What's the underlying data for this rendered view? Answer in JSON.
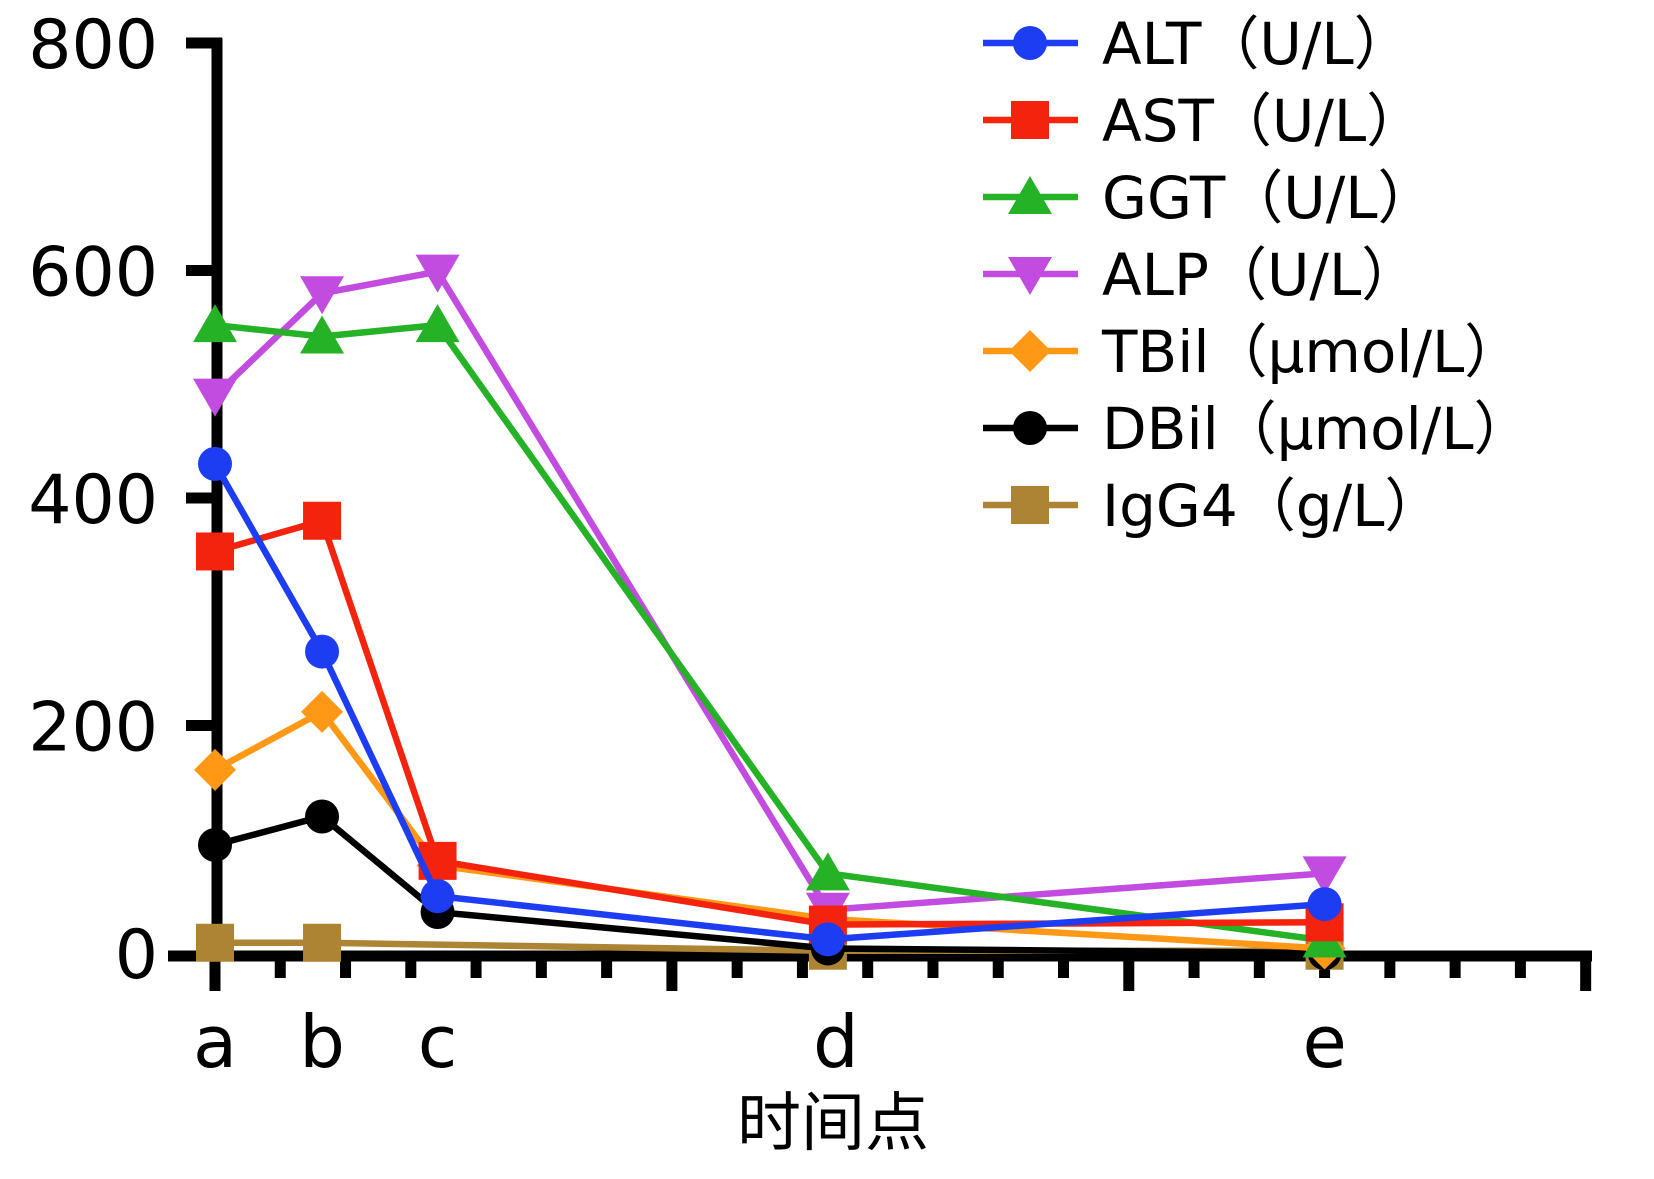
{
  "chart_data": {
    "type": "line",
    "title": "",
    "xlabel": "时间点",
    "ylabel": "",
    "categories": [
      "a",
      "b",
      "c",
      "d",
      "e"
    ],
    "x_tick_units": [
      0,
      1.64,
      3.41,
      9.39,
      17.0
    ],
    "ylim": [
      0,
      800
    ],
    "yticks": [
      0,
      200,
      400,
      600,
      800
    ],
    "ytick_labels": [
      "0",
      "200",
      "400",
      "600",
      "800"
    ],
    "minor_tick_count": 22,
    "major_tick_every": 7,
    "grid": false,
    "legend_position": "upper right",
    "background_color": "#ffffff",
    "axis_color": "#000000",
    "series": [
      {
        "key": "ALT",
        "name": "ALT（U/L）",
        "marker": "circle",
        "color": "#1d3df2",
        "values": [
          430,
          265,
          50,
          12,
          43
        ]
      },
      {
        "key": "AST",
        "name": "AST（U/L）",
        "marker": "square",
        "color": "#f3230e",
        "values": [
          353,
          380,
          81,
          25,
          27
        ]
      },
      {
        "key": "GGT",
        "name": "GGT（U/L）",
        "marker": "triangle-up",
        "color": "#26b226",
        "values": [
          552,
          542,
          552,
          70,
          11
        ]
      },
      {
        "key": "ALP",
        "name": "ALP（U/L）",
        "marker": "triangle-down",
        "color": "#c24be0",
        "values": [
          490,
          580,
          599,
          38,
          70
        ]
      },
      {
        "key": "TBil",
        "name": "TBil（μmol/L）",
        "marker": "diamond",
        "color": "#ff9815",
        "values": [
          161,
          212,
          77,
          30,
          4
        ]
      },
      {
        "key": "DBil",
        "name": "DBil（μmol/L）",
        "marker": "circle",
        "color": "#000000",
        "values": [
          95,
          120,
          36,
          4,
          0
        ]
      },
      {
        "key": "IgG4",
        "name": "IgG4（g/L）",
        "marker": "square",
        "color": "#ac8434",
        "values": [
          9,
          9,
          null,
          2,
          2
        ]
      }
    ]
  }
}
